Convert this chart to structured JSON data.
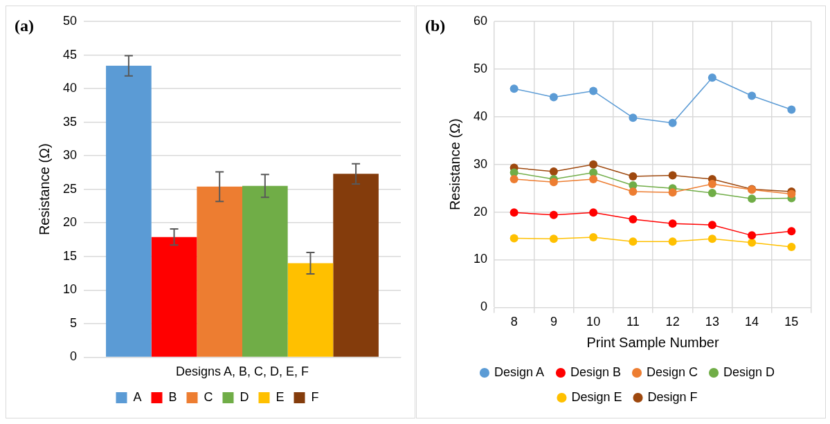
{
  "chart_data": [
    {
      "type": "bar",
      "annotations": [
        "(a)"
      ],
      "categories": [
        "Designs A, B, C, D, E, F"
      ],
      "ylabel": "Resistance (Ω)",
      "ylim": [
        0,
        50
      ],
      "yticks": [
        0,
        5,
        10,
        15,
        20,
        25,
        30,
        35,
        40,
        45,
        50
      ],
      "grid": "y",
      "legend": "bottom",
      "series": [
        {
          "name": "A",
          "color": "#5b9bd5",
          "values": [
            43.4
          ],
          "errors": [
            1.5
          ]
        },
        {
          "name": "B",
          "color": "#ff0000",
          "values": [
            17.9
          ],
          "errors": [
            1.2
          ]
        },
        {
          "name": "C",
          "color": "#ed7d31",
          "values": [
            25.4
          ],
          "errors": [
            2.2
          ]
        },
        {
          "name": "D",
          "color": "#70ad47",
          "values": [
            25.5
          ],
          "errors": [
            1.7
          ]
        },
        {
          "name": "E",
          "color": "#ffc000",
          "values": [
            14.0
          ],
          "errors": [
            1.6
          ]
        },
        {
          "name": "F",
          "color": "#843c0c",
          "values": [
            27.3
          ],
          "errors": [
            1.5
          ]
        }
      ]
    },
    {
      "type": "line",
      "annotations": [
        "(b)"
      ],
      "categories": [
        "8",
        "9",
        "10",
        "11",
        "12",
        "13",
        "14",
        "15"
      ],
      "xlabel": "Print Sample Number",
      "ylabel": "Resistance (Ω)",
      "ylim": [
        0,
        60
      ],
      "yticks": [
        0,
        10,
        20,
        30,
        40,
        50,
        60
      ],
      "grid": true,
      "legend": "bottom",
      "marker": "circle",
      "series": [
        {
          "name": "Design A",
          "color": "#5b9bd5",
          "values": [
            45.9,
            44.1,
            45.4,
            39.8,
            38.7,
            48.2,
            44.4,
            41.5
          ]
        },
        {
          "name": "Design B",
          "color": "#ff0000",
          "values": [
            19.9,
            19.4,
            19.9,
            18.5,
            17.6,
            17.3,
            15.1,
            16.0
          ]
        },
        {
          "name": "Design C",
          "color": "#ed7d31",
          "values": [
            26.9,
            26.3,
            26.9,
            24.3,
            24.1,
            25.9,
            24.7,
            23.8
          ]
        },
        {
          "name": "Design D",
          "color": "#70ad47",
          "values": [
            28.3,
            26.9,
            28.3,
            25.6,
            25.0,
            24.0,
            22.8,
            22.9
          ]
        },
        {
          "name": "Design E",
          "color": "#ffc000",
          "values": [
            14.5,
            14.4,
            14.7,
            13.8,
            13.8,
            14.4,
            13.6,
            12.7
          ]
        },
        {
          "name": "Design F",
          "color": "#9e480e",
          "values": [
            29.3,
            28.5,
            30.0,
            27.5,
            27.7,
            26.9,
            24.8,
            24.3
          ]
        }
      ]
    }
  ]
}
